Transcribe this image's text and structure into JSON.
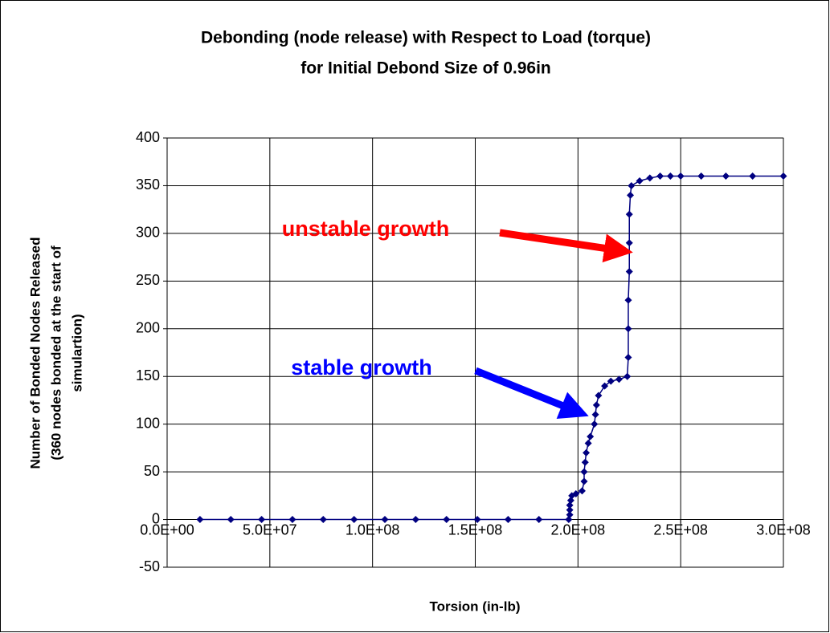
{
  "chart_data": {
    "type": "scatter",
    "title": [
      "Debonding (node release) with Respect to Load (torque)",
      "for Initial Debond Size of 0.96in"
    ],
    "xlabel": "Torsion (in-lb)",
    "ylabel": [
      "Number of Bonded Nodes Released",
      "(360 nodes bonded at the start of",
      "simulartion)"
    ],
    "annotations": [
      {
        "text": "unstable growth",
        "color": "#ff0000"
      },
      {
        "text": "stable growth",
        "color": "#0000ff"
      }
    ],
    "color": "#000080",
    "grid": true,
    "x": [
      16000000,
      31000000,
      46000000,
      61000000,
      76000000,
      91000000,
      106000000,
      121000000,
      136000000,
      151000000,
      166000000,
      181000000,
      195500000,
      196000000,
      196000000,
      196000000,
      196500000,
      197000000,
      199000000,
      202000000,
      203000000,
      203000000,
      203500000,
      204000000,
      205000000,
      206000000,
      208000000,
      208500000,
      209000000,
      210000000,
      213000000,
      216000000,
      220000000,
      224000000,
      224500000,
      224500000,
      224500000,
      225000000,
      225000000,
      225000000,
      225500000,
      226000000,
      230000000,
      235000000,
      240000000,
      245000000,
      250000000,
      260000000,
      272000000,
      285000000,
      300000000
    ],
    "values": [
      0,
      0,
      0,
      0,
      0,
      0,
      0,
      0,
      0,
      0,
      0,
      0,
      0,
      5,
      10,
      15,
      20,
      25,
      27,
      30,
      40,
      50,
      60,
      70,
      80,
      87,
      100,
      110,
      120,
      130,
      140,
      145,
      147,
      150,
      170,
      200,
      230,
      260,
      290,
      320,
      340,
      350,
      355,
      358,
      360,
      360,
      360,
      360,
      360,
      360,
      360
    ],
    "xlim": [
      0,
      300000000
    ],
    "ylim": [
      -50,
      400
    ],
    "xticks": [
      {
        "value": 0,
        "label": "0.0E+00"
      },
      {
        "value": 50000000,
        "label": "5.0E+07"
      },
      {
        "value": 100000000,
        "label": "1.0E+08"
      },
      {
        "value": 150000000,
        "label": "1.5E+08"
      },
      {
        "value": 200000000,
        "label": "2.0E+08"
      },
      {
        "value": 250000000,
        "label": "2.5E+08"
      },
      {
        "value": 300000000,
        "label": "3.0E+08"
      }
    ],
    "yticks": [
      -50,
      0,
      50,
      100,
      150,
      200,
      250,
      300,
      350,
      400
    ]
  }
}
